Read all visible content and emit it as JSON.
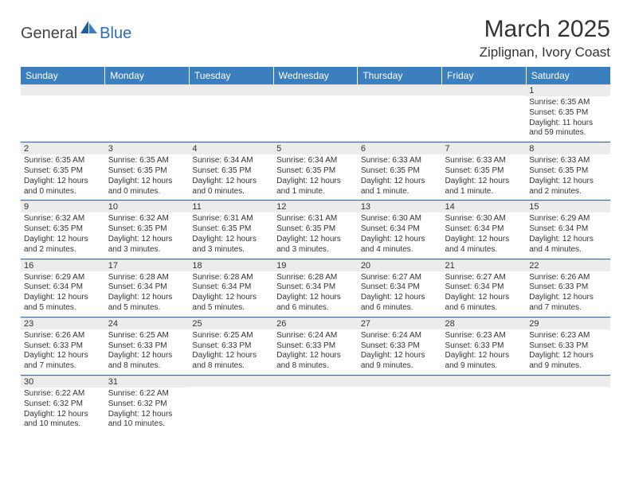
{
  "brand": {
    "part1": "General",
    "part2": "Blue"
  },
  "title": "March 2025",
  "location": "Ziplignan, Ivory Coast",
  "colors": {
    "header_bg": "#3b7fbf",
    "header_fg": "#ffffff",
    "rule": "#2c6fb5",
    "daynum_bg": "#ececec",
    "brand_blue": "#2c6fb5"
  },
  "dayNames": [
    "Sunday",
    "Monday",
    "Tuesday",
    "Wednesday",
    "Thursday",
    "Friday",
    "Saturday"
  ],
  "weeks": [
    [
      {
        "n": "",
        "sr": "",
        "ss": "",
        "dl": ""
      },
      {
        "n": "",
        "sr": "",
        "ss": "",
        "dl": ""
      },
      {
        "n": "",
        "sr": "",
        "ss": "",
        "dl": ""
      },
      {
        "n": "",
        "sr": "",
        "ss": "",
        "dl": ""
      },
      {
        "n": "",
        "sr": "",
        "ss": "",
        "dl": ""
      },
      {
        "n": "",
        "sr": "",
        "ss": "",
        "dl": ""
      },
      {
        "n": "1",
        "sr": "Sunrise: 6:35 AM",
        "ss": "Sunset: 6:35 PM",
        "dl": "Daylight: 11 hours and 59 minutes."
      }
    ],
    [
      {
        "n": "2",
        "sr": "Sunrise: 6:35 AM",
        "ss": "Sunset: 6:35 PM",
        "dl": "Daylight: 12 hours and 0 minutes."
      },
      {
        "n": "3",
        "sr": "Sunrise: 6:35 AM",
        "ss": "Sunset: 6:35 PM",
        "dl": "Daylight: 12 hours and 0 minutes."
      },
      {
        "n": "4",
        "sr": "Sunrise: 6:34 AM",
        "ss": "Sunset: 6:35 PM",
        "dl": "Daylight: 12 hours and 0 minutes."
      },
      {
        "n": "5",
        "sr": "Sunrise: 6:34 AM",
        "ss": "Sunset: 6:35 PM",
        "dl": "Daylight: 12 hours and 1 minute."
      },
      {
        "n": "6",
        "sr": "Sunrise: 6:33 AM",
        "ss": "Sunset: 6:35 PM",
        "dl": "Daylight: 12 hours and 1 minute."
      },
      {
        "n": "7",
        "sr": "Sunrise: 6:33 AM",
        "ss": "Sunset: 6:35 PM",
        "dl": "Daylight: 12 hours and 1 minute."
      },
      {
        "n": "8",
        "sr": "Sunrise: 6:33 AM",
        "ss": "Sunset: 6:35 PM",
        "dl": "Daylight: 12 hours and 2 minutes."
      }
    ],
    [
      {
        "n": "9",
        "sr": "Sunrise: 6:32 AM",
        "ss": "Sunset: 6:35 PM",
        "dl": "Daylight: 12 hours and 2 minutes."
      },
      {
        "n": "10",
        "sr": "Sunrise: 6:32 AM",
        "ss": "Sunset: 6:35 PM",
        "dl": "Daylight: 12 hours and 3 minutes."
      },
      {
        "n": "11",
        "sr": "Sunrise: 6:31 AM",
        "ss": "Sunset: 6:35 PM",
        "dl": "Daylight: 12 hours and 3 minutes."
      },
      {
        "n": "12",
        "sr": "Sunrise: 6:31 AM",
        "ss": "Sunset: 6:35 PM",
        "dl": "Daylight: 12 hours and 3 minutes."
      },
      {
        "n": "13",
        "sr": "Sunrise: 6:30 AM",
        "ss": "Sunset: 6:34 PM",
        "dl": "Daylight: 12 hours and 4 minutes."
      },
      {
        "n": "14",
        "sr": "Sunrise: 6:30 AM",
        "ss": "Sunset: 6:34 PM",
        "dl": "Daylight: 12 hours and 4 minutes."
      },
      {
        "n": "15",
        "sr": "Sunrise: 6:29 AM",
        "ss": "Sunset: 6:34 PM",
        "dl": "Daylight: 12 hours and 4 minutes."
      }
    ],
    [
      {
        "n": "16",
        "sr": "Sunrise: 6:29 AM",
        "ss": "Sunset: 6:34 PM",
        "dl": "Daylight: 12 hours and 5 minutes."
      },
      {
        "n": "17",
        "sr": "Sunrise: 6:28 AM",
        "ss": "Sunset: 6:34 PM",
        "dl": "Daylight: 12 hours and 5 minutes."
      },
      {
        "n": "18",
        "sr": "Sunrise: 6:28 AM",
        "ss": "Sunset: 6:34 PM",
        "dl": "Daylight: 12 hours and 5 minutes."
      },
      {
        "n": "19",
        "sr": "Sunrise: 6:28 AM",
        "ss": "Sunset: 6:34 PM",
        "dl": "Daylight: 12 hours and 6 minutes."
      },
      {
        "n": "20",
        "sr": "Sunrise: 6:27 AM",
        "ss": "Sunset: 6:34 PM",
        "dl": "Daylight: 12 hours and 6 minutes."
      },
      {
        "n": "21",
        "sr": "Sunrise: 6:27 AM",
        "ss": "Sunset: 6:34 PM",
        "dl": "Daylight: 12 hours and 6 minutes."
      },
      {
        "n": "22",
        "sr": "Sunrise: 6:26 AM",
        "ss": "Sunset: 6:33 PM",
        "dl": "Daylight: 12 hours and 7 minutes."
      }
    ],
    [
      {
        "n": "23",
        "sr": "Sunrise: 6:26 AM",
        "ss": "Sunset: 6:33 PM",
        "dl": "Daylight: 12 hours and 7 minutes."
      },
      {
        "n": "24",
        "sr": "Sunrise: 6:25 AM",
        "ss": "Sunset: 6:33 PM",
        "dl": "Daylight: 12 hours and 8 minutes."
      },
      {
        "n": "25",
        "sr": "Sunrise: 6:25 AM",
        "ss": "Sunset: 6:33 PM",
        "dl": "Daylight: 12 hours and 8 minutes."
      },
      {
        "n": "26",
        "sr": "Sunrise: 6:24 AM",
        "ss": "Sunset: 6:33 PM",
        "dl": "Daylight: 12 hours and 8 minutes."
      },
      {
        "n": "27",
        "sr": "Sunrise: 6:24 AM",
        "ss": "Sunset: 6:33 PM",
        "dl": "Daylight: 12 hours and 9 minutes."
      },
      {
        "n": "28",
        "sr": "Sunrise: 6:23 AM",
        "ss": "Sunset: 6:33 PM",
        "dl": "Daylight: 12 hours and 9 minutes."
      },
      {
        "n": "29",
        "sr": "Sunrise: 6:23 AM",
        "ss": "Sunset: 6:33 PM",
        "dl": "Daylight: 12 hours and 9 minutes."
      }
    ],
    [
      {
        "n": "30",
        "sr": "Sunrise: 6:22 AM",
        "ss": "Sunset: 6:32 PM",
        "dl": "Daylight: 12 hours and 10 minutes."
      },
      {
        "n": "31",
        "sr": "Sunrise: 6:22 AM",
        "ss": "Sunset: 6:32 PM",
        "dl": "Daylight: 12 hours and 10 minutes."
      },
      {
        "n": "",
        "sr": "",
        "ss": "",
        "dl": ""
      },
      {
        "n": "",
        "sr": "",
        "ss": "",
        "dl": ""
      },
      {
        "n": "",
        "sr": "",
        "ss": "",
        "dl": ""
      },
      {
        "n": "",
        "sr": "",
        "ss": "",
        "dl": ""
      },
      {
        "n": "",
        "sr": "",
        "ss": "",
        "dl": ""
      }
    ]
  ]
}
